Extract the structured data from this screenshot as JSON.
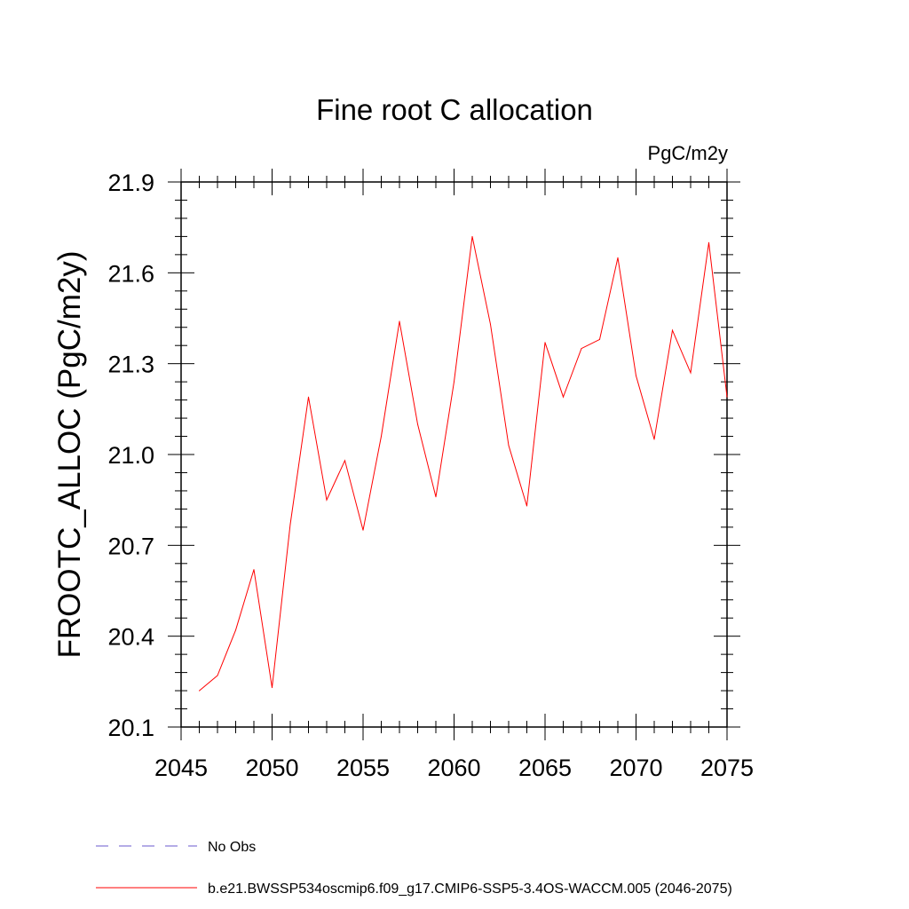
{
  "chart_data": {
    "type": "line",
    "title": "Fine root C allocation",
    "units": "PgC/m2y",
    "ylabel": "FROOTC_ALLOC  (PgC/m2y)",
    "xlabel": "",
    "xlim": [
      2045,
      2075
    ],
    "ylim": [
      20.1,
      21.9
    ],
    "xticks": [
      2045,
      2050,
      2055,
      2060,
      2065,
      2070,
      2075
    ],
    "yticks": [
      20.1,
      20.4,
      20.7,
      21.0,
      21.3,
      21.6,
      21.9
    ],
    "ytick_labels": [
      "20.1",
      "20.4",
      "20.7",
      "21.0",
      "21.3",
      "21.6",
      "21.9"
    ],
    "series": [
      {
        "name": "b.e21.BWSSP534oscmip6.f09_g17.CMIP6-SSP5-3.4OS-WACCM.005 (2046-2075)",
        "color": "#ff0000",
        "style": "solid",
        "x": [
          2046,
          2047,
          2048,
          2049,
          2050,
          2051,
          2052,
          2053,
          2054,
          2055,
          2056,
          2057,
          2058,
          2059,
          2060,
          2061,
          2062,
          2063,
          2064,
          2065,
          2066,
          2067,
          2068,
          2069,
          2070,
          2071,
          2072,
          2073,
          2074,
          2075
        ],
        "y": [
          20.22,
          20.27,
          20.42,
          20.62,
          20.23,
          20.77,
          21.19,
          20.85,
          20.98,
          20.75,
          21.06,
          21.44,
          21.1,
          20.86,
          21.24,
          21.72,
          21.43,
          21.03,
          20.83,
          21.37,
          21.19,
          21.35,
          21.38,
          21.65,
          21.26,
          21.05,
          21.41,
          21.27,
          21.7,
          21.19
        ]
      }
    ],
    "legend": [
      {
        "label": "No Obs",
        "color": "#6a5acd",
        "style": "dashed"
      },
      {
        "label": "b.e21.BWSSP534oscmip6.f09_g17.CMIP6-SSP5-3.4OS-WACCM.005 (2046-2075)",
        "color": "#ff0000",
        "style": "solid"
      }
    ]
  }
}
